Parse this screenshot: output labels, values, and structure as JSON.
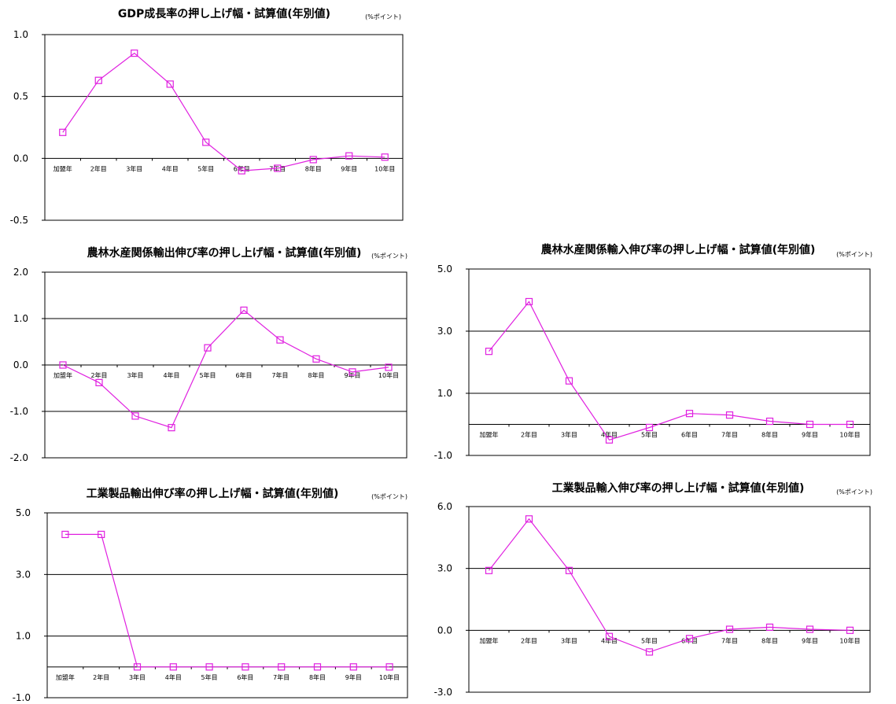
{
  "colors": {
    "series": "#e020e0",
    "grid": "#000000",
    "frame": "#000000"
  },
  "chart_data": [
    {
      "type": "line",
      "title": "GDP成長率の押し上げ幅・試算値(年別値)",
      "unit": "(%ポイント)",
      "categories": [
        "加盟年",
        "2年目",
        "3年目",
        "4年目",
        "5年目",
        "6年目",
        "7年目",
        "8年目",
        "9年目",
        "10年目"
      ],
      "values": [
        0.21,
        0.63,
        0.85,
        0.6,
        0.13,
        -0.1,
        -0.08,
        -0.01,
        0.02,
        0.01
      ],
      "ylim": [
        -0.5,
        1.0
      ],
      "yticks": [
        1.0,
        0.5,
        0.0,
        -0.5
      ],
      "gridlines": [
        0.5,
        0.0
      ]
    },
    {
      "type": "line",
      "title": "農林水産関係輸出伸び率の押し上げ幅・試算値(年別値)",
      "unit": "(%ポイント)",
      "categories": [
        "加盟年",
        "2年目",
        "3年目",
        "4年目",
        "5年目",
        "6年目",
        "7年目",
        "8年目",
        "9年目",
        "10年目"
      ],
      "values": [
        0.0,
        -0.38,
        -1.1,
        -1.35,
        0.37,
        1.18,
        0.54,
        0.13,
        -0.15,
        -0.05
      ],
      "ylim": [
        -2.0,
        2.0
      ],
      "yticks": [
        2.0,
        1.0,
        0.0,
        -1.0,
        -2.0
      ],
      "gridlines": [
        1.0,
        0.0,
        -1.0
      ]
    },
    {
      "type": "line",
      "title": "農林水産関係輸入伸び率の押し上げ幅・試算値(年別値)",
      "unit": "(%ポイント)",
      "categories": [
        "加盟年",
        "2年目",
        "3年目",
        "4年目",
        "5年目",
        "6年目",
        "7年目",
        "8年目",
        "9年目",
        "10年目"
      ],
      "values": [
        2.35,
        3.95,
        1.4,
        -0.5,
        -0.1,
        0.35,
        0.3,
        0.1,
        0.0,
        0.0
      ],
      "ylim": [
        -1.0,
        5.0
      ],
      "yticks": [
        5.0,
        3.0,
        1.0,
        -1.0
      ],
      "gridlines": [
        3.0,
        1.0,
        0.0
      ]
    },
    {
      "type": "line",
      "title": "工業製品輸出伸び率の押し上げ幅・試算値(年別値)",
      "unit": "(%ポイント)",
      "categories": [
        "加盟年",
        "2年目",
        "3年目",
        "4年目",
        "5年目",
        "6年目",
        "7年目",
        "8年目",
        "9年目",
        "10年目"
      ],
      "values": [
        4.3,
        4.3,
        0.0,
        0.0,
        0.0,
        0.0,
        0.0,
        0.0,
        0.0,
        0.0
      ],
      "ylim": [
        -1.0,
        5.0
      ],
      "yticks": [
        5.0,
        3.0,
        1.0,
        -1.0
      ],
      "gridlines": [
        3.0,
        1.0,
        0.0
      ]
    },
    {
      "type": "line",
      "title": "工業製品輸入伸び率の押し上げ幅・試算値(年別値)",
      "unit": "(%ポイント)",
      "categories": [
        "加盟年",
        "2年目",
        "3年目",
        "4年目",
        "5年目",
        "6年目",
        "7年目",
        "8年目",
        "9年目",
        "10年目"
      ],
      "values": [
        2.9,
        5.4,
        2.9,
        -0.3,
        -1.05,
        -0.4,
        0.05,
        0.15,
        0.05,
        0.0
      ],
      "ylim": [
        -3.0,
        6.0
      ],
      "yticks": [
        6.0,
        3.0,
        0.0,
        -3.0
      ],
      "gridlines": [
        3.0,
        0.0
      ]
    }
  ]
}
